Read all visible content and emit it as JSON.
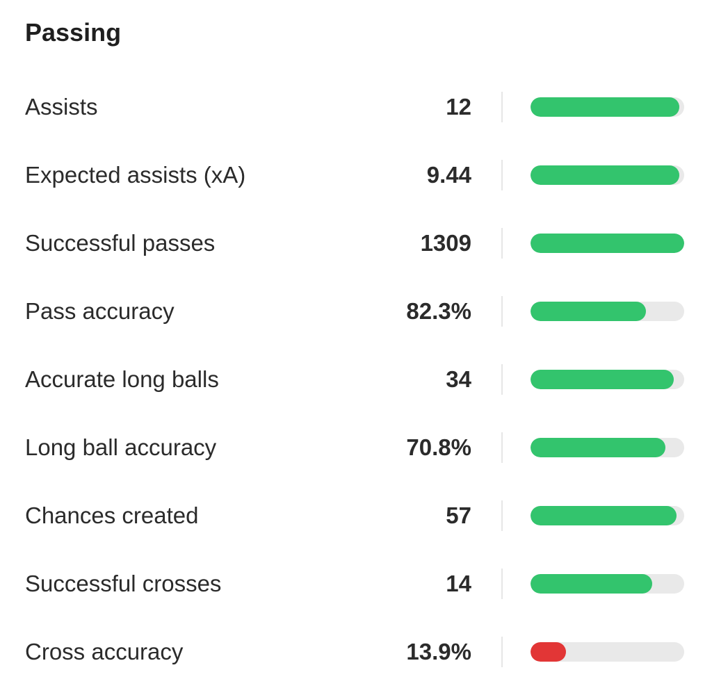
{
  "section": {
    "title": "Passing"
  },
  "colors": {
    "good": "#33c46d",
    "bad": "#e23636",
    "track": "#e9e9e9"
  },
  "stats": [
    {
      "label": "Assists",
      "value": "12",
      "fill_fraction": 0.97,
      "status": "good"
    },
    {
      "label": "Expected assists (xA)",
      "value": "9.44",
      "fill_fraction": 0.97,
      "status": "good"
    },
    {
      "label": "Successful passes",
      "value": "1309",
      "fill_fraction": 1.0,
      "status": "good"
    },
    {
      "label": "Pass accuracy",
      "value": "82.3%",
      "fill_fraction": 0.75,
      "status": "good"
    },
    {
      "label": "Accurate long balls",
      "value": "34",
      "fill_fraction": 0.93,
      "status": "good"
    },
    {
      "label": "Long ball accuracy",
      "value": "70.8%",
      "fill_fraction": 0.88,
      "status": "good"
    },
    {
      "label": "Chances created",
      "value": "57",
      "fill_fraction": 0.95,
      "status": "good"
    },
    {
      "label": "Successful crosses",
      "value": "14",
      "fill_fraction": 0.79,
      "status": "good"
    },
    {
      "label": "Cross accuracy",
      "value": "13.9%",
      "fill_fraction": 0.23,
      "status": "bad"
    }
  ]
}
